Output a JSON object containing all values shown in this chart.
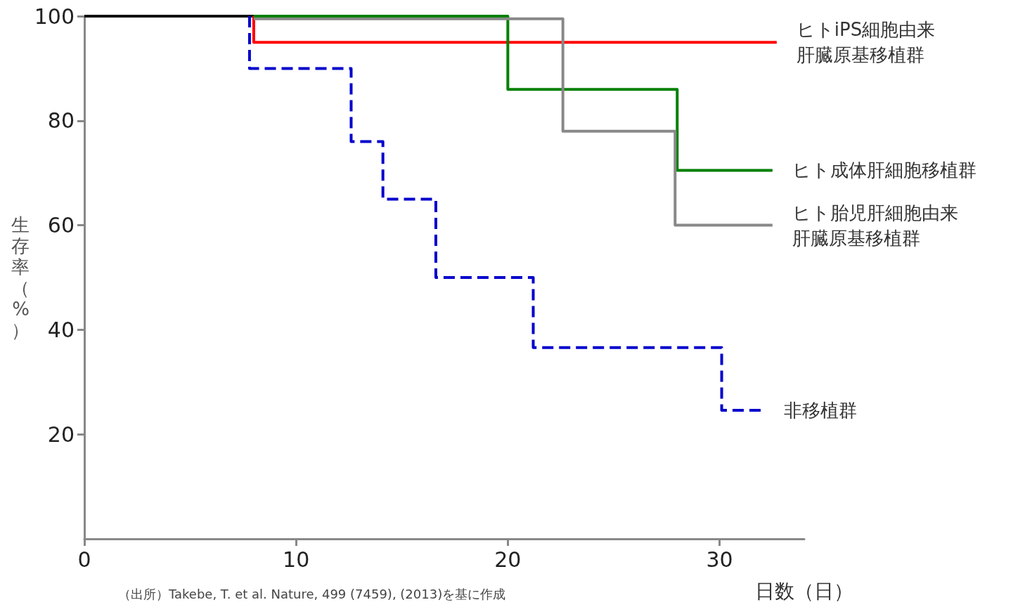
{
  "chart_data": {
    "type": "step",
    "xlabel": "日数（日）",
    "ylabel": "生存率（%）",
    "xlim": [
      0,
      34
    ],
    "xticks": [
      0,
      10,
      20,
      30
    ],
    "ylim": [
      0,
      100
    ],
    "yticks": [
      20,
      40,
      60,
      80,
      100
    ],
    "grid": false,
    "legend": false,
    "marker": "none",
    "series": [
      {
        "color": "#111111",
        "line_style": "solid",
        "x": [
          0,
          8
        ],
        "values": [
          100,
          100
        ]
      },
      {
        "name": "ヒトiPS細胞由来肝臓原基移植群",
        "color": "#ff0000",
        "line_style": "solid",
        "x": [
          8,
          8,
          32.7
        ],
        "values": [
          100,
          95,
          95
        ]
      },
      {
        "name": "ヒト成体肝細胞移植群",
        "color": "#008000",
        "line_style": "solid",
        "x": [
          8,
          20,
          28,
          32.5
        ],
        "values": [
          100,
          86,
          70.5,
          70.5
        ]
      },
      {
        "name": "ヒト胎児肝細胞由来肝臓原基移植群",
        "color": "#888888",
        "line_style": "solid",
        "x": [
          8,
          22.6,
          27.9,
          32.5
        ],
        "values": [
          99.5,
          78,
          60,
          60
        ]
      },
      {
        "name": "非移植群",
        "color": "#0000cc",
        "line_style": "dashed",
        "x": [
          7.8,
          7.8,
          12.6,
          14.1,
          16.6,
          21.2,
          30.1,
          32.1
        ],
        "values": [
          100,
          90,
          76,
          65,
          50,
          36.6,
          24.6,
          24.6
        ]
      }
    ],
    "annotations": [
      "（出所）Takebe, T. et al. Nature, 499 (7459), (2013)を基に作成"
    ]
  }
}
